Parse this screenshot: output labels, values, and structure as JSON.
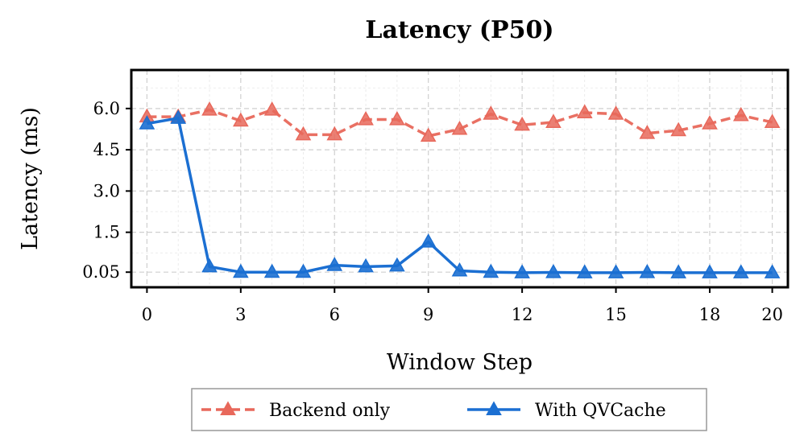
{
  "chart_data": {
    "type": "line",
    "title": "Latency (P50)",
    "xlabel": "Window Step",
    "ylabel": "Latency (ms)",
    "x": [
      0,
      1,
      2,
      3,
      4,
      5,
      6,
      7,
      8,
      9,
      10,
      11,
      12,
      13,
      14,
      15,
      16,
      17,
      18,
      19,
      20
    ],
    "xticks": [
      0,
      3,
      6,
      9,
      12,
      15,
      18,
      20
    ],
    "xlim": [
      -0.5,
      20.5
    ],
    "yticks": [
      0.05,
      1.5,
      3.0,
      4.5,
      6.0
    ],
    "ytick_labels": [
      "0.05",
      "1.5",
      "3.0",
      "4.5",
      "6.0"
    ],
    "ylim": [
      -0.5,
      7.4
    ],
    "grid": true,
    "legend_position": "bottom-center-outside",
    "series": [
      {
        "name": "Backend only",
        "color": "#e8685b",
        "style": "dashed",
        "marker": "triangle",
        "values": [
          5.7,
          5.7,
          5.95,
          5.55,
          5.95,
          5.05,
          5.05,
          5.6,
          5.6,
          5.0,
          5.25,
          5.8,
          5.4,
          5.5,
          5.85,
          5.8,
          5.1,
          5.2,
          5.45,
          5.75,
          5.5
        ]
      },
      {
        "name": "With QVCache",
        "color": "#1b6fd2",
        "style": "solid",
        "marker": "triangle",
        "values": [
          5.45,
          5.65,
          0.25,
          0.05,
          0.05,
          0.05,
          0.3,
          0.25,
          0.28,
          1.15,
          0.1,
          0.05,
          0.03,
          0.04,
          0.03,
          0.03,
          0.04,
          0.03,
          0.03,
          0.03,
          0.03
        ]
      }
    ]
  }
}
